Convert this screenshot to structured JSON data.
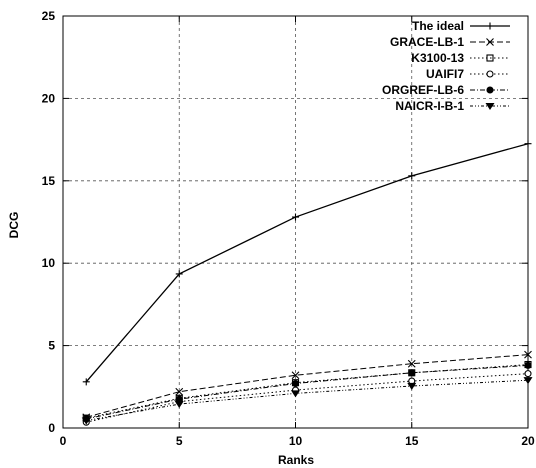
{
  "chart_data": {
    "type": "line",
    "title": "",
    "xlabel": "Ranks",
    "ylabel": "DCG",
    "xlim": [
      0,
      20
    ],
    "ylim": [
      0,
      25
    ],
    "xticks": [
      0,
      5,
      10,
      15,
      20
    ],
    "yticks": [
      0,
      5,
      10,
      15,
      20,
      25
    ],
    "grid": true,
    "legend_position": "top-right",
    "x": [
      1,
      5,
      10,
      15,
      20
    ],
    "series": [
      {
        "name": "The ideal",
        "marker": "plus",
        "dash": "solid",
        "values": [
          2.8,
          9.35,
          12.8,
          15.3,
          17.25
        ]
      },
      {
        "name": "GRACE-LB-1",
        "marker": "cross",
        "dash": "dashed",
        "values": [
          0.65,
          2.2,
          3.2,
          3.9,
          4.45
        ]
      },
      {
        "name": "K3100-13",
        "marker": "square",
        "dash": "dotted",
        "values": [
          0.6,
          1.8,
          2.75,
          3.35,
          3.85
        ]
      },
      {
        "name": "UAIFI7",
        "marker": "circle-open",
        "dash": "dotted",
        "values": [
          0.35,
          1.6,
          2.3,
          2.85,
          3.3
        ]
      },
      {
        "name": "ORGREF-LB-6",
        "marker": "circle-filled",
        "dash": "dashdot",
        "values": [
          0.55,
          1.75,
          2.7,
          3.35,
          3.8
        ]
      },
      {
        "name": "NAICR-I-B-1",
        "marker": "triangle-down",
        "dash": "dashdot2",
        "values": [
          0.45,
          1.45,
          2.1,
          2.55,
          2.9
        ]
      }
    ]
  }
}
